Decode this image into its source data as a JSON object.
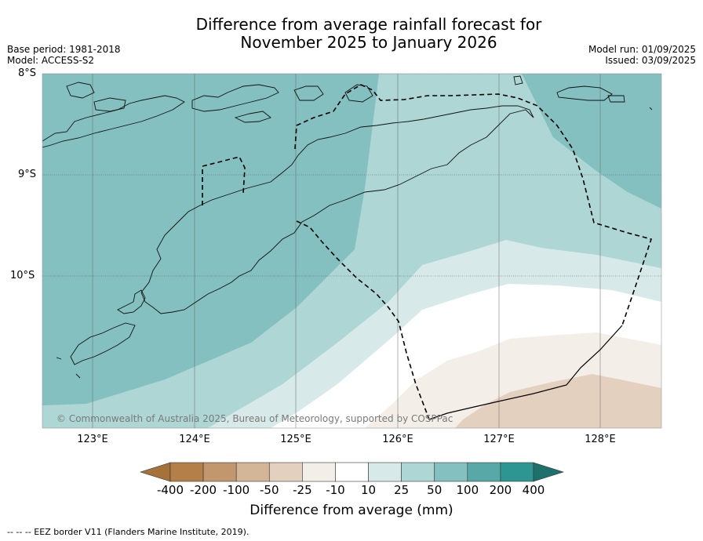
{
  "header": {
    "title_line1": "Difference from average rainfall forecast for",
    "title_line2": "November 2025 to January 2026",
    "base_period": "Base period: 1981-2018",
    "model": "Model: ACCESS-S2",
    "model_run": "Model run: 01/09/2025",
    "issued": "Issued: 03/09/2025"
  },
  "map": {
    "lat_labels": [
      "8°S",
      "9°S",
      "10°S"
    ],
    "lon_labels": [
      "123°E",
      "124°E",
      "125°E",
      "126°E",
      "127°E",
      "128°E"
    ],
    "copyright": "© Commonwealth of Australia 2025, Bureau of Meteorology, supported by COSPPac"
  },
  "colorbar": {
    "labels": [
      "-400",
      "-200",
      "-100",
      "-50",
      "-25",
      "-10",
      "10",
      "25",
      "50",
      "100",
      "200",
      "400"
    ],
    "colors": [
      "#a5723a",
      "#b57f49",
      "#c2976d",
      "#d3b597",
      "#e3d0bf",
      "#f4eee8",
      "#ffffff",
      "#d7e9e8",
      "#add6d5",
      "#83c0bf",
      "#58a8a7",
      "#2e9692",
      "#1d706c"
    ],
    "title": "Difference from average (mm)"
  },
  "footnote": "--  --  -- EEZ border V11 (Flanders Marine Institute, 2019)."
}
